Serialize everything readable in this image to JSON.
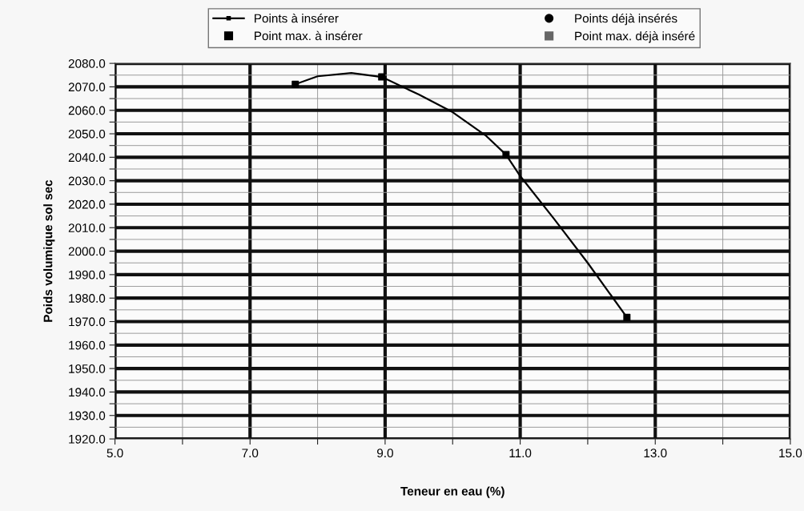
{
  "chart_data": {
    "type": "line",
    "xlabel": "Teneur en eau (%)",
    "ylabel": "Poids volumique sol sec",
    "series": [
      {
        "name": "Points à insérer",
        "color": "#000000",
        "x": [
          7.67,
          8.0,
          8.5,
          8.95,
          9.5,
          10.0,
          10.5,
          10.79,
          11.0,
          11.5,
          12.0,
          12.58
        ],
        "values": [
          2071.1,
          2074.5,
          2075.9,
          2074.2,
          2066.7,
          2059.2,
          2049.0,
          2041.1,
          2032.0,
          2013.8,
          1995.0,
          1971.8
        ]
      },
      {
        "type": "scatter",
        "color": "#000000",
        "marker": "square",
        "x": [
          7.67,
          8.95,
          10.79,
          12.58
        ],
        "values": [
          2071.1,
          2074.2,
          2041.1,
          1971.8
        ]
      },
      {
        "name": "Points déjà insérés",
        "type": "scatter",
        "color": "#000000",
        "marker": "circle"
      },
      {
        "name": "Point max. à insérer",
        "type": "scatter",
        "color": "#000000",
        "marker": "square"
      },
      {
        "name": "Point max. déjà inséré",
        "type": "scatter",
        "color": "#666666",
        "marker": "square"
      }
    ],
    "xlim": [
      5,
      15
    ],
    "xticks": [
      {
        "value": 5,
        "label": "5.0"
      },
      {
        "value": 6,
        "label": null
      },
      {
        "value": 7,
        "label": "7.0"
      },
      {
        "value": 8,
        "label": null
      },
      {
        "value": 9,
        "label": "9.0"
      },
      {
        "value": 10,
        "label": null
      },
      {
        "value": 11,
        "label": "11.0"
      },
      {
        "value": 12,
        "label": null
      },
      {
        "value": 13,
        "label": "13.0"
      },
      {
        "value": 14,
        "label": null
      },
      {
        "value": 15,
        "label": "15.0"
      }
    ],
    "ylim": [
      1920,
      2080
    ],
    "yticks": [
      {
        "value": 1920,
        "label": "1920.0"
      },
      {
        "value": 1925,
        "label": null
      },
      {
        "value": 1930,
        "label": "1930.0"
      },
      {
        "value": 1935,
        "label": null
      },
      {
        "value": 1940,
        "label": "1940.0"
      },
      {
        "value": 1945,
        "label": null
      },
      {
        "value": 1950,
        "label": "1950.0"
      },
      {
        "value": 1955,
        "label": null
      },
      {
        "value": 1960,
        "label": "1960.0"
      },
      {
        "value": 1965,
        "label": null
      },
      {
        "value": 1970,
        "label": "1970.0"
      },
      {
        "value": 1975,
        "label": null
      },
      {
        "value": 1980,
        "label": "1980.0"
      },
      {
        "value": 1985,
        "label": null
      },
      {
        "value": 1990,
        "label": "1990.0"
      },
      {
        "value": 1995,
        "label": null
      },
      {
        "value": 2000,
        "label": "2000.0"
      },
      {
        "value": 2005,
        "label": null
      },
      {
        "value": 2010,
        "label": "2010.0"
      },
      {
        "value": 2015,
        "label": null
      },
      {
        "value": 2020,
        "label": "2020.0"
      },
      {
        "value": 2025,
        "label": null
      },
      {
        "value": 2030,
        "label": "2030.0"
      },
      {
        "value": 2035,
        "label": null
      },
      {
        "value": 2040,
        "label": "2040.0"
      },
      {
        "value": 2045,
        "label": null
      },
      {
        "value": 2050,
        "label": "2050.0"
      },
      {
        "value": 2055,
        "label": null
      },
      {
        "value": 2060,
        "label": "2060.0"
      },
      {
        "value": 2065,
        "label": null
      },
      {
        "value": 2070,
        "label": "2070.0"
      },
      {
        "value": 2075,
        "label": null
      },
      {
        "value": 2080,
        "label": "2080.0"
      }
    ],
    "grid": true,
    "legend": "top",
    "line_style": "solid"
  }
}
